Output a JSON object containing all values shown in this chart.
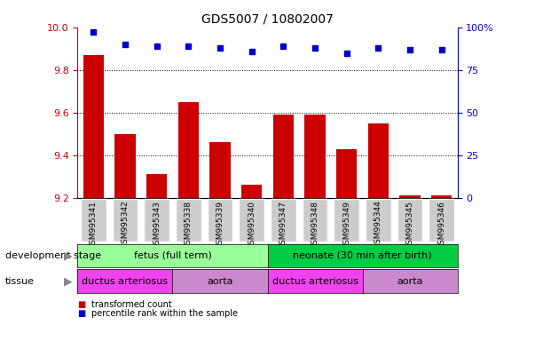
{
  "title": "GDS5007 / 10802007",
  "samples": [
    "GSM995341",
    "GSM995342",
    "GSM995343",
    "GSM995338",
    "GSM995339",
    "GSM995340",
    "GSM995347",
    "GSM995348",
    "GSM995349",
    "GSM995344",
    "GSM995345",
    "GSM995346"
  ],
  "transformed_count": [
    9.87,
    9.5,
    9.31,
    9.65,
    9.46,
    9.26,
    9.59,
    9.59,
    9.43,
    9.55,
    9.21,
    9.21
  ],
  "percentile_rank": [
    97,
    90,
    89,
    89,
    88,
    86,
    89,
    88,
    85,
    88,
    87,
    87
  ],
  "ylim_left": [
    9.2,
    10.0
  ],
  "ylim_right": [
    0,
    100
  ],
  "yticks_left": [
    9.2,
    9.4,
    9.6,
    9.8,
    10.0
  ],
  "yticks_right": [
    0,
    25,
    50,
    75,
    100
  ],
  "bar_color": "#cc0000",
  "dot_color": "#0000cc",
  "tick_bg_color": "#cccccc",
  "dev_stage_fetus_color": "#99ff99",
  "dev_stage_neonate_color": "#00cc44",
  "tissue_ductus_color": "#ee44ee",
  "tissue_aorta_color": "#cc88cc",
  "fetus_samples": 6,
  "neonate_samples": 6,
  "ductus_fetus_samples": 3,
  "aorta_fetus_samples": 3,
  "ductus_neonate_samples": 3,
  "aorta_neonate_samples": 3,
  "left_label_dev": "development stage",
  "left_label_tissue": "tissue",
  "dev_fetus_label": "fetus (full term)",
  "dev_neonate_label": "neonate (30 min after birth)",
  "tissue_ductus_label": "ductus arteriosus",
  "tissue_aorta_label": "aorta",
  "legend_bar_label": "transformed count",
  "legend_dot_label": "percentile rank within the sample"
}
